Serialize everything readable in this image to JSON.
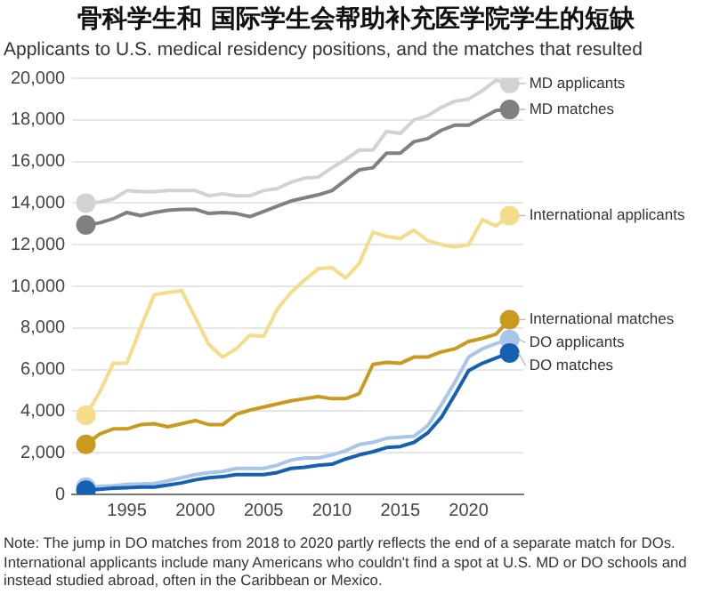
{
  "chart_data": {
    "type": "line",
    "title": "骨科学生和 国际学生会帮助补充医学院学生的短缺",
    "subtitle": "Applicants to U.S. medical residency positions, and the matches that resulted",
    "annotations": [
      "Note: The jump in DO matches from 2018 to 2020 partly reflects the end of a separate match for DOs. International applicants include many Americans who couldn't find a spot at U.S. MD or DO schools and instead studied abroad, often in the Caribbean or Mexico."
    ],
    "x": [
      1992,
      1993,
      1994,
      1995,
      1996,
      1997,
      1998,
      1999,
      2000,
      2001,
      2002,
      2003,
      2004,
      2005,
      2006,
      2007,
      2008,
      2009,
      2010,
      2011,
      2012,
      2013,
      2014,
      2015,
      2016,
      2017,
      2018,
      2019,
      2020,
      2021,
      2022,
      2023
    ],
    "xlim": [
      1991,
      2024
    ],
    "xticks": [
      1995,
      2000,
      2005,
      2010,
      2015,
      2020
    ],
    "ylim": [
      0,
      20000
    ],
    "yticks": [
      {
        "value": 0,
        "label": "0"
      },
      {
        "value": 2000,
        "label": "2,000"
      },
      {
        "value": 4000,
        "label": "4,000"
      },
      {
        "value": 6000,
        "label": "6,000"
      },
      {
        "value": 8000,
        "label": "8,000"
      },
      {
        "value": 10000,
        "label": "10,000"
      },
      {
        "value": 12000,
        "label": "12,000"
      },
      {
        "value": 14000,
        "label": "14,000"
      },
      {
        "value": 16000,
        "label": "16,000"
      },
      {
        "value": 18000,
        "label": "18,000"
      },
      {
        "value": 20000,
        "label": "20,000"
      }
    ],
    "grid": "y",
    "legend": false,
    "series": [
      {
        "name": "MD applicants",
        "color": "#d2d2d2",
        "values": [
          14000,
          14050,
          14200,
          14600,
          14550,
          14550,
          14600,
          14600,
          14600,
          14350,
          14450,
          14350,
          14350,
          14600,
          14700,
          15000,
          15200,
          15250,
          15700,
          16100,
          16550,
          16550,
          17450,
          17350,
          18000,
          18200,
          18600,
          18900,
          19000,
          19400,
          19900,
          19750
        ]
      },
      {
        "name": "MD matches",
        "color": "#808080",
        "values": [
          12950,
          13050,
          13250,
          13550,
          13400,
          13550,
          13650,
          13700,
          13700,
          13500,
          13550,
          13500,
          13350,
          13600,
          13850,
          14100,
          14250,
          14400,
          14600,
          15100,
          15600,
          15700,
          16400,
          16400,
          16950,
          17100,
          17500,
          17750,
          17750,
          18100,
          18450,
          18500
        ]
      },
      {
        "name": "International applicants",
        "color": "#f5dc8a",
        "values": [
          3800,
          4900,
          6300,
          6300,
          8000,
          9600,
          9700,
          9800,
          8500,
          7200,
          6600,
          7000,
          7650,
          7600,
          8900,
          9700,
          10300,
          10850,
          10900,
          10400,
          11100,
          12600,
          12400,
          12300,
          12700,
          12200,
          12000,
          11900,
          12000,
          13200,
          12900,
          13400
        ]
      },
      {
        "name": "International matches",
        "color": "#c99a1e",
        "values": [
          2400,
          2900,
          3150,
          3150,
          3350,
          3400,
          3250,
          3400,
          3550,
          3350,
          3350,
          3850,
          4050,
          4200,
          4350,
          4500,
          4600,
          4700,
          4600,
          4600,
          4850,
          6250,
          6350,
          6300,
          6600,
          6600,
          6850,
          7000,
          7350,
          7500,
          7700,
          8400
        ]
      },
      {
        "name": "DO applicants",
        "color": "#a9c6ea",
        "values": [
          350,
          380,
          420,
          480,
          500,
          520,
          650,
          800,
          950,
          1050,
          1100,
          1250,
          1250,
          1250,
          1400,
          1650,
          1750,
          1750,
          1900,
          2100,
          2400,
          2500,
          2700,
          2750,
          2800,
          3300,
          4300,
          5400,
          6600,
          7000,
          7250,
          7450
        ]
      },
      {
        "name": "DO matches",
        "color": "#1560b0",
        "values": [
          200,
          250,
          300,
          320,
          350,
          350,
          450,
          550,
          700,
          800,
          850,
          950,
          950,
          950,
          1050,
          1250,
          1300,
          1400,
          1450,
          1700,
          1900,
          2050,
          2250,
          2300,
          2500,
          2950,
          3700,
          4800,
          5950,
          6300,
          6550,
          6800
        ]
      }
    ]
  }
}
